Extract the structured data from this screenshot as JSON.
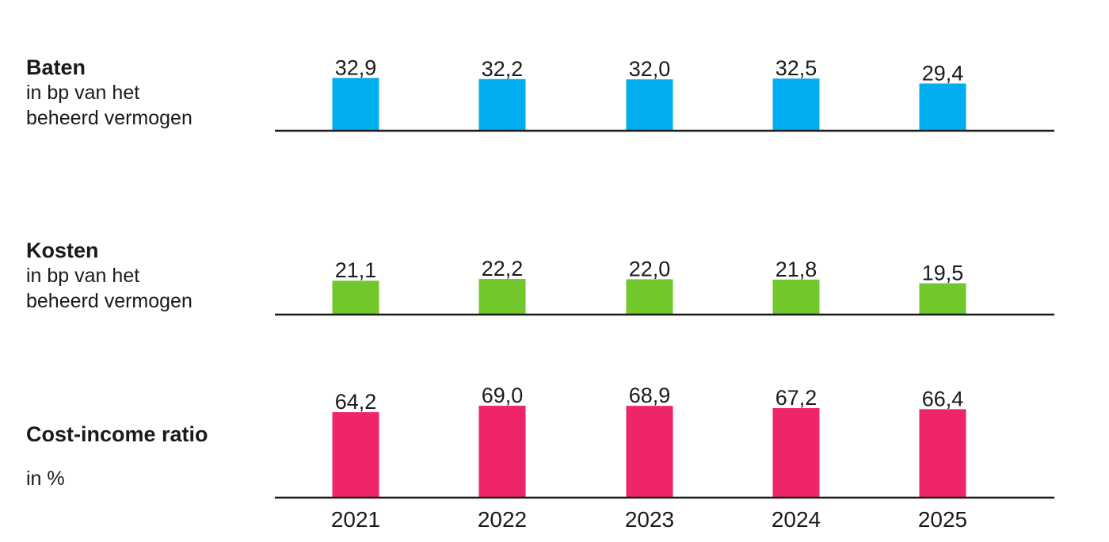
{
  "chart_data": [
    {
      "type": "bar",
      "title": "Baten",
      "subtitle": "in bp van het\nbeheerd vermogen",
      "categories": [
        "2021",
        "2022",
        "2023",
        "2024",
        "2025"
      ],
      "values": [
        32.9,
        32.2,
        32.0,
        32.5,
        29.4
      ],
      "value_labels": [
        "32,9",
        "32,2",
        "32,0",
        "32,5",
        "29,4"
      ],
      "color": "#00aeef",
      "ylim": [
        0,
        38
      ],
      "grid": false
    },
    {
      "type": "bar",
      "title": "Kosten",
      "subtitle": "in bp van het\nbeheerd vermogen",
      "categories": [
        "2021",
        "2022",
        "2023",
        "2024",
        "2025"
      ],
      "values": [
        21.1,
        22.2,
        22.0,
        21.8,
        19.5
      ],
      "value_labels": [
        "21,1",
        "22,2",
        "22,0",
        "21,8",
        "19,5"
      ],
      "color": "#72c72c",
      "ylim": [
        0,
        38
      ],
      "grid": false
    },
    {
      "type": "bar",
      "title": "Cost-income ratio",
      "subtitle": "in %",
      "categories": [
        "2021",
        "2022",
        "2023",
        "2024",
        "2025"
      ],
      "values": [
        64.2,
        69.0,
        68.9,
        67.2,
        66.4
      ],
      "value_labels": [
        "64,2",
        "69,0",
        "68,9",
        "67,2",
        "66,4"
      ],
      "color": "#ee2668",
      "ylim": [
        0,
        94
      ],
      "grid": false
    }
  ]
}
